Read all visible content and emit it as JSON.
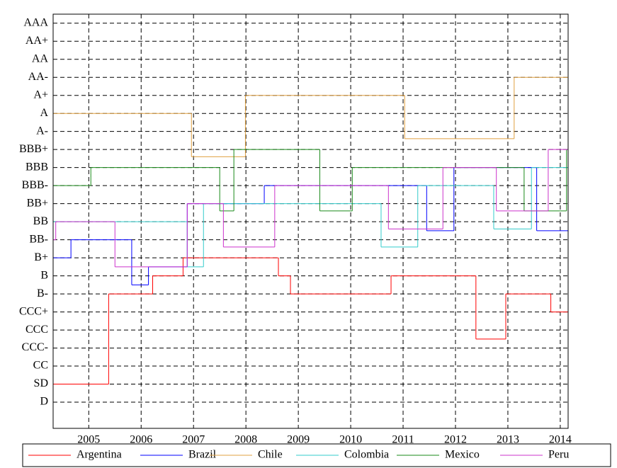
{
  "chart_data": {
    "type": "step",
    "xlim": [
      2004.32,
      2014.15
    ],
    "xticks": [
      2005,
      2006,
      2007,
      2008,
      2009,
      2010,
      2011,
      2012,
      2013,
      2014
    ],
    "ylim": [
      -1.45,
      21.5
    ],
    "yticks": [
      {
        "value": 0,
        "label": "D"
      },
      {
        "value": 1,
        "label": "SD"
      },
      {
        "value": 2,
        "label": "CC"
      },
      {
        "value": 3,
        "label": "CCC-"
      },
      {
        "value": 4,
        "label": "CCC"
      },
      {
        "value": 5,
        "label": "CCC+"
      },
      {
        "value": 6,
        "label": "B-"
      },
      {
        "value": 7,
        "label": "B"
      },
      {
        "value": 8,
        "label": "B+"
      },
      {
        "value": 9,
        "label": "BB-"
      },
      {
        "value": 10,
        "label": "BB"
      },
      {
        "value": 11,
        "label": "BB+"
      },
      {
        "value": 12,
        "label": "BBB-"
      },
      {
        "value": 13,
        "label": "BBB"
      },
      {
        "value": 14,
        "label": "BBB+"
      },
      {
        "value": 15,
        "label": "A-"
      },
      {
        "value": 16,
        "label": "A"
      },
      {
        "value": 17,
        "label": "A+"
      },
      {
        "value": 18,
        "label": "AA-"
      },
      {
        "value": 19,
        "label": "AA"
      },
      {
        "value": 20,
        "label": "AA+"
      },
      {
        "value": 21,
        "label": "AAA"
      }
    ],
    "grid": true,
    "legend": "bottom",
    "series": [
      {
        "name": "Argentina",
        "color": "#ff0000",
        "x": [
          2004.32,
          2005.38,
          2006.22,
          2006.8,
          2008.62,
          2008.85,
          2010.77,
          2012.39,
          2012.96,
          2013.82
        ],
        "values": [
          1,
          6,
          7,
          8,
          7,
          6,
          7,
          3.5,
          6,
          5
        ]
      },
      {
        "name": "Brazil",
        "color": "#0000ff",
        "x": [
          2004.32,
          2004.66,
          2005.82,
          2006.14,
          2006.88,
          2008.35,
          2011.45,
          2011.97,
          2013.55
        ],
        "values": [
          8,
          9,
          6.5,
          7.5,
          11,
          12,
          9.5,
          13,
          9.5
        ]
      },
      {
        "name": "Chile",
        "color": "#e0a040",
        "x": [
          2004.32,
          2006.96,
          2007.99,
          2011.03,
          2013.12
        ],
        "values": [
          16,
          13.6,
          17,
          14.6,
          18
        ]
      },
      {
        "name": "Colombia",
        "color": "#33cccc",
        "x": [
          2004.32,
          2006.88,
          2007.19,
          2010.58,
          2011.28,
          2012.73,
          2013.45
        ],
        "values": [
          10,
          7.5,
          11,
          8.6,
          12,
          9.6,
          13
        ]
      },
      {
        "name": "Mexico",
        "color": "#1a8a1a",
        "x": [
          2004.32,
          2005.04,
          2007.5,
          2007.77,
          2009.41,
          2010.03,
          2013.31,
          2014.12
        ],
        "values": [
          12,
          13,
          10.6,
          14,
          10.6,
          13,
          10.6,
          14
        ]
      },
      {
        "name": "Peru",
        "color": "#cc33cc",
        "x": [
          2004.32,
          2004.37,
          2005.5,
          2006.88,
          2007.57,
          2008.55,
          2010.72,
          2011.76,
          2012.78,
          2013.77
        ],
        "values": [
          9,
          10,
          7.5,
          11,
          8.6,
          12,
          9.6,
          13,
          10.6,
          14
        ]
      }
    ]
  }
}
